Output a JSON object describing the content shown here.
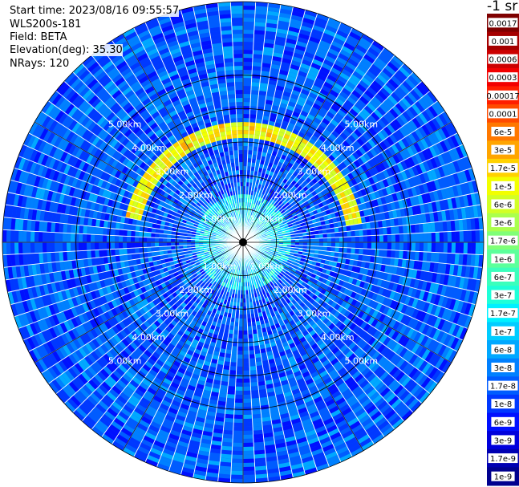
{
  "header": {
    "start_time": "Start time: 2023/08/16 09:55:57",
    "instrument": "WLS200s-181",
    "field": "Field: BETA",
    "elevation": "Elevation(deg): 35.30",
    "nrays": "NRays: 120"
  },
  "colorbar": {
    "title": "-1 sr",
    "ticks": [
      "0.0017",
      "0.001",
      "0.0006",
      "0.0003",
      "0.00017",
      "0.0001",
      "6e-5",
      "3e-5",
      "1.7e-5",
      "1e-5",
      "6e-6",
      "3e-6",
      "1.7e-6",
      "1e-6",
      "6e-7",
      "3e-7",
      "1.7e-7",
      "1e-7",
      "6e-8",
      "3e-8",
      "1.7e-8",
      "1e-8",
      "6e-9",
      "3e-9",
      "1.7e-9",
      "1e-9"
    ],
    "colors": [
      "#7f0000",
      "#a50000",
      "#cc0000",
      "#f20000",
      "#ff1e00",
      "#ff4b00",
      "#ff7800",
      "#ffa500",
      "#ffd200",
      "#f2ff00",
      "#d2ff25",
      "#aaff4d",
      "#80ff77",
      "#5cff9b",
      "#3bffbc",
      "#1effd8",
      "#00f0ff",
      "#00ccff",
      "#00a8ff",
      "#0080ff",
      "#005cff",
      "#0038ff",
      "#0010ff",
      "#0000dc",
      "#0000b2",
      "#00008f"
    ]
  },
  "range_labels": [
    "1.00km",
    "2.00km",
    "3.00km",
    "4.00km",
    "5.00km"
  ],
  "chart_data": {
    "type": "heatmap",
    "projection": "polar-ppi",
    "field": "BETA",
    "units": "-1 sr",
    "n_rays": 120,
    "elevation_deg": 35.3,
    "range_rings_km": [
      1,
      2,
      3,
      4,
      5
    ],
    "max_range_km": 7.2,
    "scale": "log",
    "vmin": 1e-09,
    "vmax": 0.0017,
    "background_level": 1.7e-08,
    "aerosol_layer": {
      "range_km_from": 3.1,
      "range_km_to": 3.6,
      "azimuth_from_deg": 280,
      "azimuth_to_deg": 80,
      "peak_value": 1e-05
    },
    "near_field": {
      "range_km_to": 1.4,
      "value": 1.7e-07
    }
  }
}
